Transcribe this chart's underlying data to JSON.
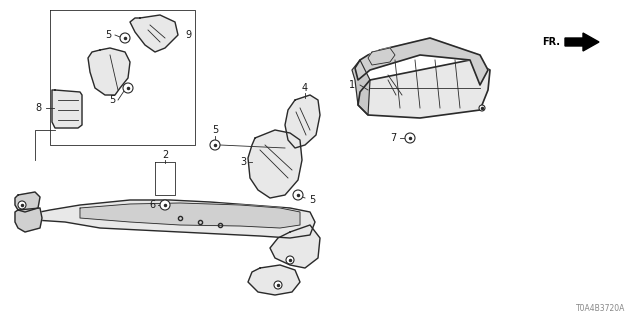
{
  "bg_color": "#ffffff",
  "diagram_id": "T0A4B3720A",
  "line_color": "#2a2a2a",
  "text_color": "#1a1a1a",
  "fill_color": "#e8e8e8",
  "fill_dark": "#d0d0d0"
}
